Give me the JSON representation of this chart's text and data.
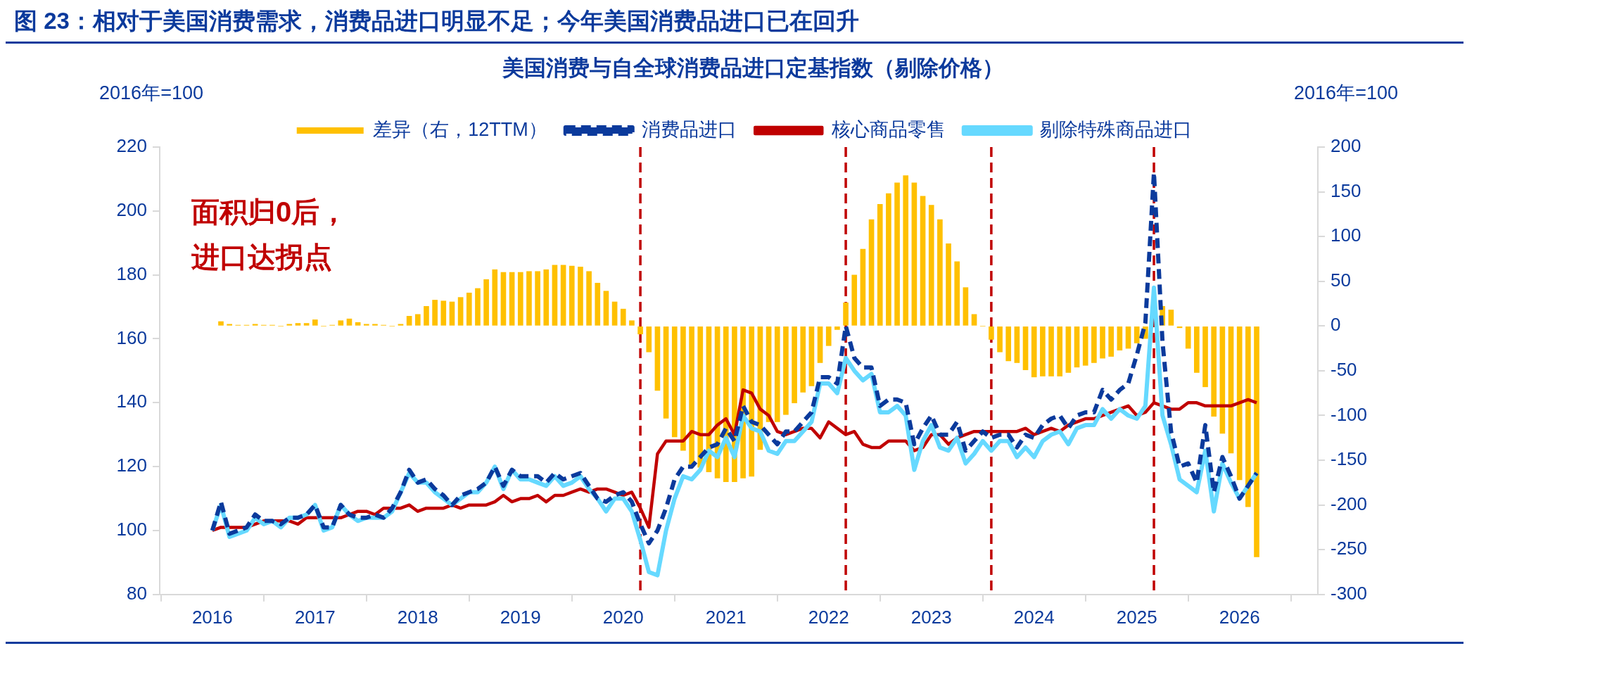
{
  "chart_data": {
    "type": "line",
    "title": "图 23：相对于美国消费需求，消费品进口明显不足；今年美国消费品进口已在回升",
    "subtitle": "美国消费与自全球消费品进口定基指数（剔除价格）",
    "ylabel": "2016年=100",
    "y2label": "2016年=100",
    "x": [
      "2016-01",
      "2016-02",
      "2016-03",
      "2016-04",
      "2016-05",
      "2016-06",
      "2016-07",
      "2016-08",
      "2016-09",
      "2016-10",
      "2016-11",
      "2016-12",
      "2017-01",
      "2017-02",
      "2017-03",
      "2017-04",
      "2017-05",
      "2017-06",
      "2017-07",
      "2017-08",
      "2017-09",
      "2017-10",
      "2017-11",
      "2017-12",
      "2018-01",
      "2018-02",
      "2018-03",
      "2018-04",
      "2018-05",
      "2018-06",
      "2018-07",
      "2018-08",
      "2018-09",
      "2018-10",
      "2018-11",
      "2018-12",
      "2019-01",
      "2019-02",
      "2019-03",
      "2019-04",
      "2019-05",
      "2019-06",
      "2019-07",
      "2019-08",
      "2019-09",
      "2019-10",
      "2019-11",
      "2019-12",
      "2020-01",
      "2020-02",
      "2020-03",
      "2020-04",
      "2020-05",
      "2020-06",
      "2020-07",
      "2020-08",
      "2020-09",
      "2020-10",
      "2020-11",
      "2020-12",
      "2021-01",
      "2021-02",
      "2021-03",
      "2021-04",
      "2021-05",
      "2021-06",
      "2021-07",
      "2021-08",
      "2021-09",
      "2021-10",
      "2021-11",
      "2021-12",
      "2022-01",
      "2022-02",
      "2022-03",
      "2022-04",
      "2022-05",
      "2022-06",
      "2022-07",
      "2022-08",
      "2022-09",
      "2022-10",
      "2022-11",
      "2022-12",
      "2023-01",
      "2023-02",
      "2023-03",
      "2023-04",
      "2023-05",
      "2023-06",
      "2023-07",
      "2023-08",
      "2023-09",
      "2023-10",
      "2023-11",
      "2023-12",
      "2024-01",
      "2024-02",
      "2024-03",
      "2024-04",
      "2024-05",
      "2024-06",
      "2024-07",
      "2024-08",
      "2024-09",
      "2024-10",
      "2024-11",
      "2024-12",
      "2025-01",
      "2025-02",
      "2025-03",
      "2025-04",
      "2025-05",
      "2025-06",
      "2025-07",
      "2025-08",
      "2025-09",
      "2025-10",
      "2025-11",
      "2025-12",
      "2026-01",
      "2026-02",
      "2026-03"
    ],
    "series": [
      {
        "name": "差异（右，12TTM）",
        "type": "bar",
        "axis": "y2",
        "color": "#ffc000",
        "values": [
          null,
          5,
          2,
          1,
          1,
          2,
          1,
          1,
          0,
          2,
          3,
          3,
          7,
          0,
          1,
          6,
          8,
          4,
          2,
          2,
          1,
          0,
          2,
          11,
          13,
          22,
          29,
          28,
          27,
          32,
          37,
          42,
          52,
          63,
          60,
          60,
          60,
          61,
          61,
          63,
          68,
          68,
          67,
          66,
          61,
          48,
          39,
          27,
          19,
          6,
          -9,
          -29,
          -72,
          -103,
          -124,
          -139,
          -155,
          -158,
          -163,
          -170,
          -174,
          -174,
          -170,
          -168,
          -138,
          -107,
          -107,
          -99,
          -86,
          -74,
          -67,
          -41,
          -22,
          -4,
          26,
          57,
          86,
          119,
          136,
          148,
          160,
          168,
          160,
          145,
          135,
          119,
          92,
          72,
          43,
          13,
          0,
          -15,
          -29,
          -39,
          -41,
          -49,
          -57,
          -56,
          -56,
          -56,
          -52,
          -46,
          -44,
          -41,
          -36,
          -34,
          -27,
          -25,
          -19,
          -14,
          null,
          22,
          18,
          -2,
          -25,
          -52,
          -68,
          -101,
          -120,
          -142,
          -172,
          -202,
          -258
        ]
      },
      {
        "name": "消费品进口",
        "line_style": "dashed",
        "color": "#0b3a9c",
        "values": [
          100,
          109,
          99,
          100,
          101,
          105,
          103,
          103,
          102,
          104,
          104,
          105,
          108,
          101,
          101,
          108,
          105,
          104,
          104,
          105,
          104,
          107,
          112,
          119,
          115,
          116,
          113,
          111,
          108,
          111,
          112,
          113,
          115,
          120,
          114,
          119,
          117,
          117,
          117,
          115,
          118,
          116,
          117,
          118,
          114,
          110,
          109,
          111,
          112,
          109,
          102,
          96,
          100,
          107,
          116,
          120,
          120,
          123,
          126,
          127,
          132,
          128,
          139,
          134,
          133,
          130,
          127,
          131,
          131,
          134,
          137,
          148,
          148,
          146,
          164,
          154,
          151,
          151,
          139,
          141,
          141,
          140,
          127,
          132,
          136,
          130,
          130,
          134,
          125,
          128,
          131,
          129,
          130,
          130,
          126,
          130,
          129,
          133,
          135,
          136,
          132,
          136,
          137,
          137,
          144,
          141,
          144,
          146,
          155,
          165,
          212,
          159,
          131,
          120,
          121,
          115,
          133,
          112,
          123,
          117,
          110,
          114,
          118
        ]
      },
      {
        "name": "核心商品零售",
        "line_style": "solid",
        "color": "#c00000",
        "values": [
          100,
          101,
          101,
          101,
          101,
          102,
          103,
          103,
          103,
          103,
          102,
          104,
          104,
          104,
          104,
          104,
          105,
          106,
          106,
          105,
          107,
          107,
          107,
          108,
          106,
          107,
          107,
          107,
          108,
          107,
          108,
          108,
          108,
          109,
          111,
          109,
          110,
          110,
          111,
          109,
          111,
          111,
          112,
          113,
          112,
          113,
          113,
          112,
          111,
          112,
          107,
          101,
          124,
          128,
          128,
          128,
          131,
          130,
          130,
          133,
          135,
          130,
          144,
          143,
          138,
          136,
          131,
          130,
          131,
          132,
          132,
          129,
          134,
          132,
          130,
          131,
          127,
          126,
          126,
          128,
          128,
          128,
          125,
          126,
          130,
          130,
          127,
          129,
          130,
          131,
          131,
          131,
          131,
          131,
          131,
          132,
          130,
          131,
          132,
          131,
          133,
          134,
          135,
          135,
          136,
          137,
          138,
          139,
          136,
          137,
          140,
          139,
          138,
          138,
          140,
          140,
          139,
          139,
          139,
          139,
          140,
          141,
          140
        ]
      },
      {
        "name": "剔除特殊商品进口",
        "line_style": "solid",
        "color": "#66d9ff",
        "values": [
          100,
          108,
          98,
          99,
          100,
          104,
          102,
          103,
          101,
          104,
          104,
          105,
          108,
          100,
          101,
          108,
          105,
          103,
          104,
          104,
          104,
          106,
          112,
          118,
          115,
          115,
          112,
          110,
          108,
          110,
          112,
          112,
          115,
          120,
          113,
          119,
          116,
          116,
          115,
          114,
          117,
          114,
          115,
          117,
          113,
          110,
          106,
          110,
          110,
          106,
          97,
          87,
          86,
          100,
          110,
          117,
          116,
          119,
          125,
          123,
          129,
          123,
          136,
          132,
          131,
          125,
          124,
          128,
          128,
          131,
          134,
          146,
          146,
          143,
          154,
          150,
          147,
          149,
          137,
          137,
          139,
          136,
          119,
          128,
          133,
          126,
          125,
          129,
          121,
          124,
          128,
          125,
          128,
          128,
          123,
          126,
          123,
          128,
          130,
          131,
          127,
          132,
          133,
          133,
          138,
          135,
          138,
          136,
          135,
          139,
          176,
          136,
          127,
          116,
          114,
          112,
          125,
          106,
          121,
          115,
          110,
          114,
          118
        ]
      }
    ],
    "xlim": [
      "2016-01",
      "2026-04"
    ],
    "xticks": [
      "2016",
      "2017",
      "2018",
      "2019",
      "2020",
      "2021",
      "2022",
      "2023",
      "2024",
      "2025",
      "2026"
    ],
    "ylim": [
      80,
      220
    ],
    "yticks": [
      80,
      100,
      120,
      140,
      160,
      180,
      200,
      220
    ],
    "y2lim": [
      -300,
      200
    ],
    "y2ticks": [
      -300,
      -250,
      -200,
      -150,
      -100,
      -50,
      0,
      50,
      100,
      150,
      200
    ],
    "ref_lines": [
      {
        "axis": "x",
        "value": "2020-03",
        "color": "#c00000",
        "line_style": "dashed"
      },
      {
        "axis": "x",
        "value": "2022-03",
        "color": "#c00000",
        "line_style": "dashed"
      },
      {
        "axis": "x",
        "value": "2023-08",
        "color": "#c00000",
        "line_style": "dashed"
      },
      {
        "axis": "x",
        "value": "2025-03",
        "color": "#c00000",
        "line_style": "dashed"
      }
    ],
    "annotations": [
      "面积归0后，",
      "进口达拐点"
    ],
    "legend": "top",
    "marker": "none"
  }
}
